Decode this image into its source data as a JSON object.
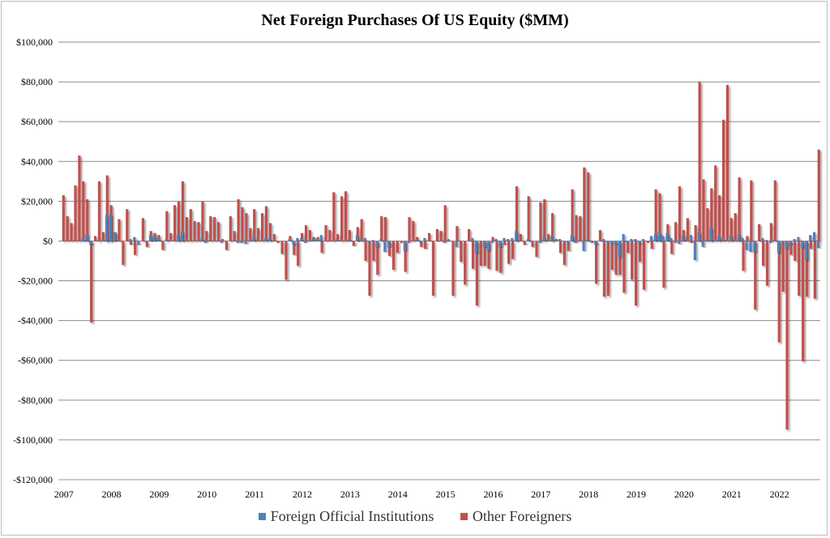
{
  "chart_data": {
    "type": "bar",
    "title": "Net Foreign Purchases Of  US Equity ($MM)",
    "xlabel": "",
    "ylabel": "",
    "ylim": [
      -120000,
      100000
    ],
    "yticks": [
      100000,
      80000,
      60000,
      40000,
      20000,
      0,
      -20000,
      -40000,
      -60000,
      -80000,
      -100000,
      -120000
    ],
    "ytick_labels": [
      "$100,000",
      "$80,000",
      "$60,000",
      "$40,000",
      "$20,000",
      "$0",
      "-$20,000",
      "-$40,000",
      "-$60,000",
      "-$80,000",
      "-$100,000",
      "-$120,000"
    ],
    "xtick_labels": [
      "2007",
      "2008",
      "2009",
      "2010",
      "2011",
      "2012",
      "2013",
      "2014",
      "2015",
      "2016",
      "2017",
      "2018",
      "2019",
      "2020",
      "2021",
      "2022"
    ],
    "x_start": "2007-01",
    "frequency": "monthly",
    "grid": true,
    "legend_placement": "bottom",
    "series": [
      {
        "name": "Foreign Official Institutions",
        "color": "#4F81BD",
        "values": [
          0,
          0,
          0,
          0,
          0,
          1600,
          3500,
          -2000,
          0,
          0,
          1000,
          13000,
          13500,
          4500,
          0,
          0,
          0,
          1000,
          2000,
          -2000,
          0,
          0,
          3000,
          3000,
          1500,
          0,
          1000,
          0,
          0,
          3000,
          5000,
          0,
          0,
          0,
          0,
          1500,
          -1000,
          0,
          0,
          0,
          -1000,
          0,
          0,
          0,
          -1000,
          -1000,
          -1500,
          0,
          2000,
          0,
          0,
          1500,
          1500,
          0,
          0,
          0,
          0,
          1000,
          -2000,
          1500,
          1500,
          -1000,
          0,
          2000,
          1000,
          3000,
          0,
          0,
          0,
          1000,
          0,
          0,
          1000,
          0,
          3000,
          0,
          1500,
          -1000,
          500,
          -3000,
          1000,
          -5500,
          -3000,
          0,
          0,
          0,
          -5000,
          -1000,
          0,
          1000,
          -1000,
          1500,
          0,
          0,
          0,
          0,
          -1000,
          1000,
          0,
          -3000,
          0,
          0,
          0,
          1500,
          -6000,
          0,
          -3000,
          -5000,
          -1000,
          1000,
          -3000,
          1500,
          1000,
          1500,
          5000,
          0,
          0,
          1000,
          0,
          0,
          -1000,
          2000,
          0,
          2500,
          0,
          1000,
          0,
          -1000,
          3000,
          -1000,
          0,
          -5000,
          1000,
          0,
          -2000,
          0,
          1000,
          -1000,
          -1000,
          -2000,
          -8000,
          3500,
          -1000,
          1000,
          1000,
          -1500,
          1000,
          0,
          2500,
          3500,
          4500,
          2500,
          4000,
          1500,
          -1000,
          -1500,
          3000,
          0,
          3000,
          -9600,
          4500,
          -3000,
          1000,
          7000,
          500,
          2500,
          1500,
          0,
          3000,
          0,
          3500,
          1500,
          -4500,
          -5500,
          -5500,
          0,
          1500,
          500,
          -1000,
          1000,
          -6000,
          -1000,
          -4000,
          -2000,
          1000,
          2000,
          -3500,
          -9500,
          3000,
          4500,
          -3500
        ]
      },
      {
        "name": "Other Foreigners",
        "color": "#C0504D",
        "values": [
          23000,
          12500,
          9000,
          28000,
          43000,
          30000,
          21000,
          -41000,
          2500,
          30000,
          4500,
          33000,
          18000,
          4500,
          11000,
          -12000,
          16000,
          -2000,
          -7000,
          0,
          11500,
          -3000,
          5000,
          4000,
          3000,
          -4500,
          15000,
          4000,
          18000,
          20000,
          30000,
          12000,
          16000,
          10000,
          9500,
          20000,
          5000,
          12500,
          12000,
          9500,
          1000,
          -4500,
          12500,
          5000,
          21000,
          17000,
          14000,
          6500,
          16000,
          6500,
          14000,
          17500,
          9000,
          3500,
          -1000,
          -6500,
          -19500,
          2500,
          -7000,
          -12500,
          4000,
          8000,
          5500,
          2000,
          2000,
          -6000,
          8000,
          5500,
          24500,
          3500,
          22500,
          25000,
          5500,
          -2500,
          7000,
          11000,
          -10000,
          -27500,
          -10000,
          -17000,
          12500,
          12000,
          -7500,
          -14500,
          -6000,
          -1000,
          -15500,
          12000,
          10000,
          2000,
          -3000,
          -4000,
          4000,
          -27500,
          6000,
          5000,
          18000,
          0,
          -27500,
          7500,
          -10500,
          -22000,
          6000,
          -14000,
          -32500,
          -12500,
          -12500,
          -14000,
          2000,
          -15000,
          -16000,
          -2000,
          -11500,
          -9000,
          27500,
          3500,
          -2000,
          22500,
          -3000,
          -8000,
          19500,
          21000,
          3500,
          14000,
          1000,
          -6000,
          -12000,
          -5000,
          26000,
          13000,
          12500,
          37000,
          34500,
          -1000,
          -21500,
          5500,
          -28000,
          -27500,
          -14500,
          -17000,
          -17000,
          -26000,
          -6000,
          -19500,
          -32500,
          -10500,
          -24500,
          -1000,
          -4000,
          26000,
          24000,
          -23500,
          8500,
          -6500,
          9500,
          27500,
          5500,
          11500,
          -1000,
          8000,
          80000,
          31000,
          16500,
          26500,
          38000,
          23000,
          61000,
          78500,
          11500,
          14000,
          32000,
          -15000,
          2500,
          30500,
          -34500,
          8500,
          -12500,
          -22500,
          9000,
          30500,
          -51000,
          -25500,
          -94800,
          -7000,
          -10000,
          -27500,
          -60500,
          -28000,
          -4000,
          -29000,
          46000
        ]
      }
    ]
  }
}
